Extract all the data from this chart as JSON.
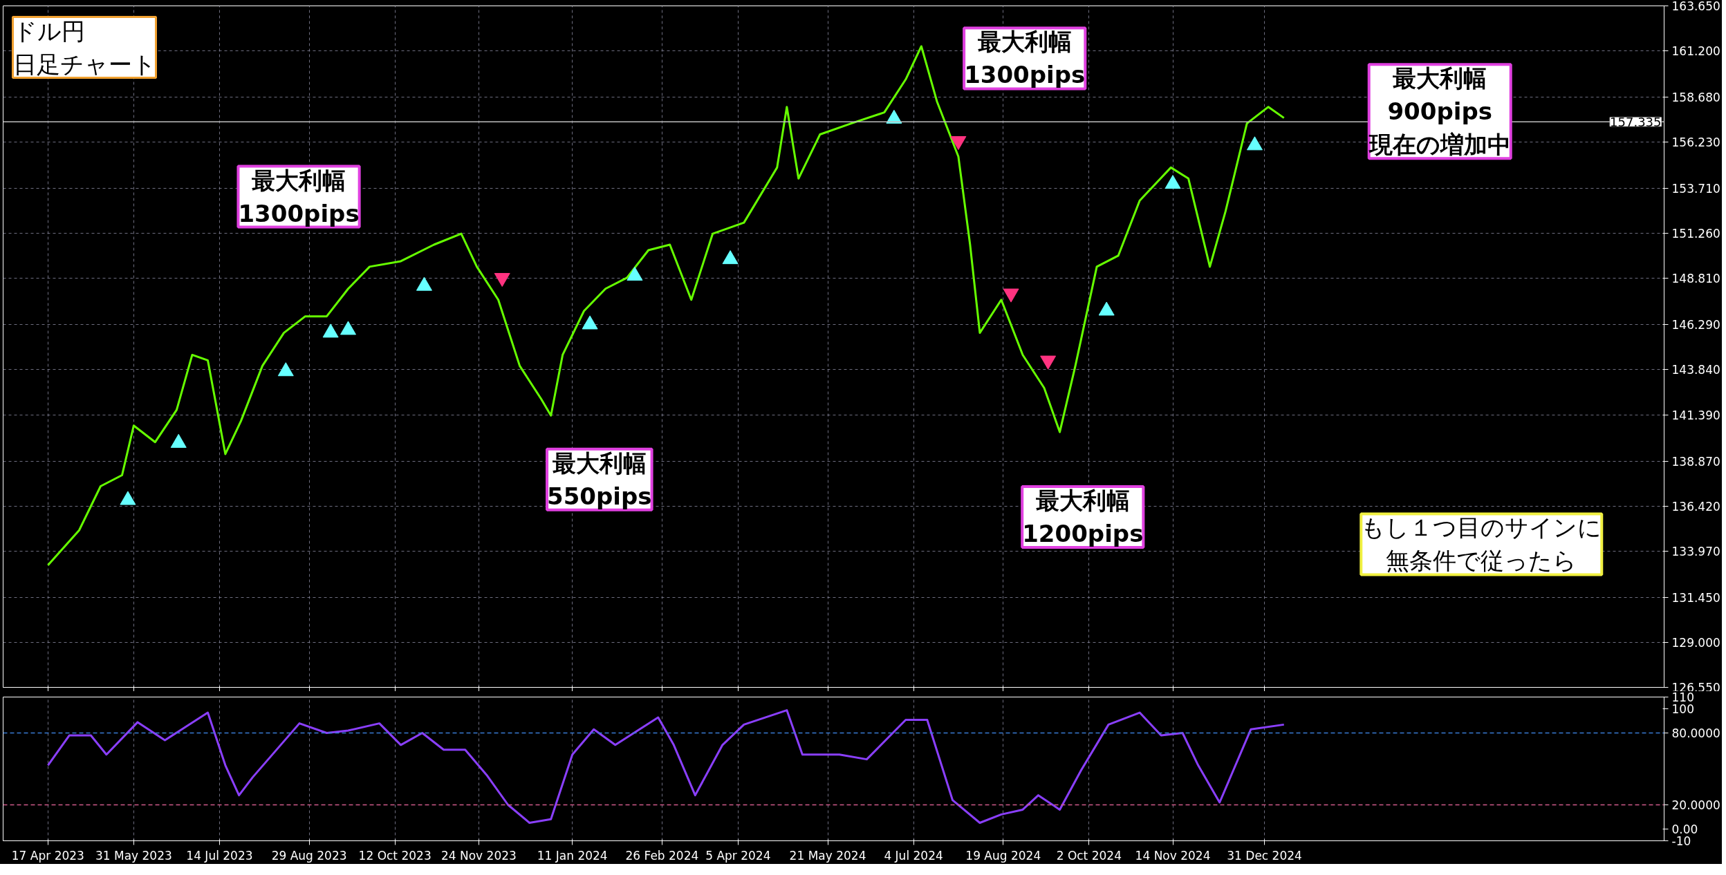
{
  "chart_data": [
    {
      "type": "line",
      "title": "ドル円",
      "subtitle": "日足チャート",
      "xlim": [
        "2023-03-25",
        "2025-07-24"
      ],
      "ylim": [
        126.55,
        163.65
      ],
      "xticks": [
        {
          "value": "2023-04-17",
          "label": null
        },
        {
          "value": "2023-05-31",
          "label": null
        },
        {
          "value": "2023-07-14",
          "label": null
        },
        {
          "value": "2023-08-29",
          "label": null
        },
        {
          "value": "2023-10-12",
          "label": null
        },
        {
          "value": "2023-11-24",
          "label": null
        },
        {
          "value": "2024-01-11",
          "label": null
        },
        {
          "value": "2024-02-26",
          "label": null
        },
        {
          "value": "2024-04-05",
          "label": null
        },
        {
          "value": "2024-05-21",
          "label": null
        },
        {
          "value": "2024-07-04",
          "label": null
        },
        {
          "value": "2024-08-19",
          "label": null
        },
        {
          "value": "2024-10-02",
          "label": null
        },
        {
          "value": "2024-11-14",
          "label": null
        },
        {
          "value": "2024-12-31",
          "label": null
        }
      ],
      "yticks": [
        {
          "value": 163.65,
          "label": "163.650"
        },
        {
          "value": 161.2,
          "label": "161.200"
        },
        {
          "value": 158.68,
          "label": "158.680"
        },
        {
          "value": 156.23,
          "label": "156.230"
        },
        {
          "value": 153.71,
          "label": "153.710"
        },
        {
          "value": 151.26,
          "label": "151.260"
        },
        {
          "value": 148.81,
          "label": "148.810"
        },
        {
          "value": 146.29,
          "label": "146.290"
        },
        {
          "value": 143.84,
          "label": "143.840"
        },
        {
          "value": 141.39,
          "label": "141.390"
        },
        {
          "value": 138.87,
          "label": "138.870"
        },
        {
          "value": 136.42,
          "label": "136.420"
        },
        {
          "value": 133.97,
          "label": "133.970"
        },
        {
          "value": 131.45,
          "label": "131.450"
        },
        {
          "value": 129.0,
          "label": "129.000"
        },
        {
          "value": 126.55,
          "label": "126.550"
        }
      ],
      "tick_labels": "y",
      "grid": true,
      "x": [
        "2023-04-17",
        "2023-05-03",
        "2023-05-14",
        "2023-05-25",
        "2023-05-31",
        "2023-06-11",
        "2023-06-22",
        "2023-06-30",
        "2023-07-08",
        "2023-07-17",
        "2023-07-25",
        "2023-08-05",
        "2023-08-16",
        "2023-08-27",
        "2023-09-07",
        "2023-09-18",
        "2023-09-29",
        "2023-10-15",
        "2023-11-01",
        "2023-11-15",
        "2023-11-23",
        "2023-12-04",
        "2023-12-15",
        "2023-12-26",
        "2023-12-31",
        "2024-01-06",
        "2024-01-17",
        "2024-01-28",
        "2024-02-08",
        "2024-02-19",
        "2024-03-01",
        "2024-03-12",
        "2024-03-23",
        "2024-04-08",
        "2024-04-25",
        "2024-04-30",
        "2024-05-06",
        "2024-05-17",
        "2024-06-02",
        "2024-06-19",
        "2024-06-30",
        "2024-07-08",
        "2024-07-16",
        "2024-07-27",
        "2024-08-02",
        "2024-08-07",
        "2024-08-18",
        "2024-08-29",
        "2024-09-09",
        "2024-09-17",
        "2024-09-25",
        "2024-10-06",
        "2024-10-17",
        "2024-10-28",
        "2024-11-13",
        "2024-11-22",
        "2024-12-03",
        "2024-12-11",
        "2024-12-22",
        "2025-01-02",
        "2025-01-10"
      ],
      "series": [
        {
          "color": "#66ff00",
          "values": [
            133.2,
            135.1,
            137.5,
            138.1,
            140.8,
            139.9,
            141.65,
            144.65,
            144.35,
            139.25,
            141.05,
            144.05,
            145.85,
            146.75,
            146.75,
            148.25,
            149.45,
            149.75,
            150.65,
            151.25,
            149.45,
            147.65,
            144.05,
            142.25,
            141.35,
            144.65,
            147.05,
            148.25,
            148.85,
            150.35,
            150.65,
            147.65,
            151.25,
            151.85,
            154.85,
            158.15,
            154.25,
            156.65,
            157.25,
            157.85,
            159.65,
            161.45,
            158.45,
            155.45,
            150.65,
            145.85,
            147.65,
            144.65,
            142.85,
            140.45,
            144.05,
            149.45,
            150.05,
            153.05,
            154.85,
            154.25,
            149.45,
            152.45,
            157.25,
            158.15,
            157.55
          ]
        },
        {
          "type": "scatter",
          "marker": "triangle",
          "color": "#66ffff",
          "x": [
            "2023-05-28",
            "2023-06-23",
            "2023-08-17",
            "2023-09-09",
            "2023-09-18",
            "2023-10-27",
            "2024-01-20",
            "2024-02-12",
            "2024-04-01",
            "2024-06-24",
            "2024-10-11",
            "2024-11-14",
            "2024-12-26"
          ],
          "values": [
            136.74,
            139.85,
            143.75,
            145.85,
            146.0,
            148.4,
            146.3,
            148.95,
            149.85,
            157.5,
            147.05,
            153.95,
            156.05
          ]
        },
        {
          "type": "scatter",
          "color": "#ff3380",
          "x": [
            "2023-12-06",
            "2024-07-27",
            "2024-08-23",
            "2024-09-11"
          ],
          "values": [
            148.85,
            156.3,
            148.0,
            144.35
          ]
        }
      ],
      "ref_lines": [
        {
          "axis": "y",
          "value": 157.335,
          "label": "157.335",
          "color": "#c0c0c0",
          "line_style": "solid"
        }
      ],
      "annotations": [
        "最大利幅\n1300pips",
        "最大利幅\n550pips",
        "最大利幅\n1300pips",
        "最大利幅\n1200pips",
        "最大利幅\n900pips\n現在の増加中",
        "もし１つ目のサインに無条件で従ったら"
      ]
    },
    {
      "type": "line",
      "xlim": [
        "2023-03-25",
        "2025-07-24"
      ],
      "ylim": [
        -10,
        110
      ],
      "xticks": [
        {
          "value": "2023-04-17",
          "label": "17 Apr 2023"
        },
        {
          "value": "2023-05-31",
          "label": "31 May 2023"
        },
        {
          "value": "2023-07-14",
          "label": "14 Jul 2023"
        },
        {
          "value": "2023-08-29",
          "label": "29 Aug 2023"
        },
        {
          "value": "2023-10-12",
          "label": "12 Oct 2023"
        },
        {
          "value": "2023-11-24",
          "label": "24 Nov 2023"
        },
        {
          "value": "2024-01-11",
          "label": "11 Jan 2024"
        },
        {
          "value": "2024-02-26",
          "label": "26 Feb 2024"
        },
        {
          "value": "2024-04-05",
          "label": "5 Apr 2024"
        },
        {
          "value": "2024-05-21",
          "label": "21 May 2024"
        },
        {
          "value": "2024-07-04",
          "label": "4 Jul 2024"
        },
        {
          "value": "2024-08-19",
          "label": "19 Aug 2024"
        },
        {
          "value": "2024-10-02",
          "label": "2 Oct 2024"
        },
        {
          "value": "2024-11-14",
          "label": "14 Nov 2024"
        },
        {
          "value": "2024-12-31",
          "label": "31 Dec 2024"
        }
      ],
      "yticks": [
        {
          "value": 110,
          "label": "110"
        },
        {
          "value": 100,
          "label": "100"
        },
        {
          "value": 80,
          "label": "80.0000"
        },
        {
          "value": 20,
          "label": "20.0000"
        },
        {
          "value": 0,
          "label": "0.00"
        },
        {
          "value": -10,
          "label": "-10"
        }
      ],
      "grid": "x",
      "x": [
        "2023-04-17",
        "2023-04-28",
        "2023-05-09",
        "2023-05-17",
        "2023-06-02",
        "2023-06-16",
        "2023-07-08",
        "2023-07-17",
        "2023-07-24",
        "2023-07-31",
        "2023-08-24",
        "2023-09-07",
        "2023-09-18",
        "2023-10-04",
        "2023-10-15",
        "2023-10-26",
        "2023-11-06",
        "2023-11-17",
        "2023-11-28",
        "2023-12-09",
        "2023-12-20",
        "2023-12-31",
        "2024-01-11",
        "2024-01-22",
        "2024-02-02",
        "2024-02-24",
        "2024-03-03",
        "2024-03-14",
        "2024-03-28",
        "2024-04-08",
        "2024-04-30",
        "2024-05-08",
        "2024-05-27",
        "2024-06-10",
        "2024-06-30",
        "2024-07-11",
        "2024-07-24",
        "2024-08-07",
        "2024-08-18",
        "2024-08-29",
        "2024-09-06",
        "2024-09-17",
        "2024-09-28",
        "2024-10-12",
        "2024-10-28",
        "2024-11-08",
        "2024-11-19",
        "2024-11-27",
        "2024-12-08",
        "2024-12-24",
        "2025-01-10"
      ],
      "series": [
        {
          "color": "#8a3ffc",
          "values": [
            53,
            78,
            78,
            62,
            89,
            74,
            97,
            53,
            28,
            43,
            88,
            80,
            82,
            88,
            70,
            80,
            66,
            66,
            45,
            20,
            5,
            8,
            62,
            83,
            70,
            93,
            70,
            28,
            70,
            87,
            99,
            62,
            62,
            58,
            91,
            91,
            24,
            5,
            12,
            16,
            28,
            16,
            49,
            87,
            97,
            78,
            80,
            53,
            22,
            83,
            87
          ]
        }
      ],
      "ref_lines": [
        {
          "axis": "y",
          "value": 80,
          "color": "#3a7bd5",
          "line_style": "dashed"
        },
        {
          "axis": "y",
          "value": 20,
          "color": "#d05a8a",
          "line_style": "dashed"
        }
      ]
    }
  ]
}
